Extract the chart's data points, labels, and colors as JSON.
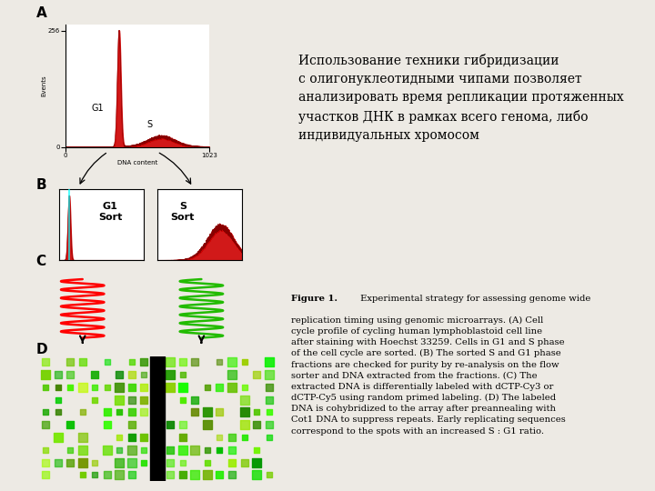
{
  "bg_color": "#edeae4",
  "title_russian": "Использование техники гибридизации\nс олигонуклеотидными чипами позволяет\nанализировать время репликации протяженных\nучастков ДНК в рамках всего генома, либо\nиндивидуальных хромосом",
  "figure_caption_bold": "Figure 1.",
  "figure_caption_normal": " Experimental strategy for assessing genome wide replication timing using genomic microarrays. (A) Cell cycle profile of cycling human lymphoblastoid cell line after staining with Hoechst 33259. Cells in G1 and S phase of the cell cycle are sorted. (B) The sorted S and G1 phase fractions are checked for purity by re-analysis on the flow sorter and DNA extracted from the fractions. (C) The extracted DNA is differentially labeled with dCTP-Cy3 or dCTP-Cy5 using random primed labeling. (D) The labeled DNA is cohybridized to the array after preannealing with Cot1 DNA to suppress repeats. Early replicating sequences correspond to the spots with an increased S : G1 ratio.",
  "label_A": "A",
  "label_B": "B",
  "label_C": "C",
  "label_D": "D"
}
